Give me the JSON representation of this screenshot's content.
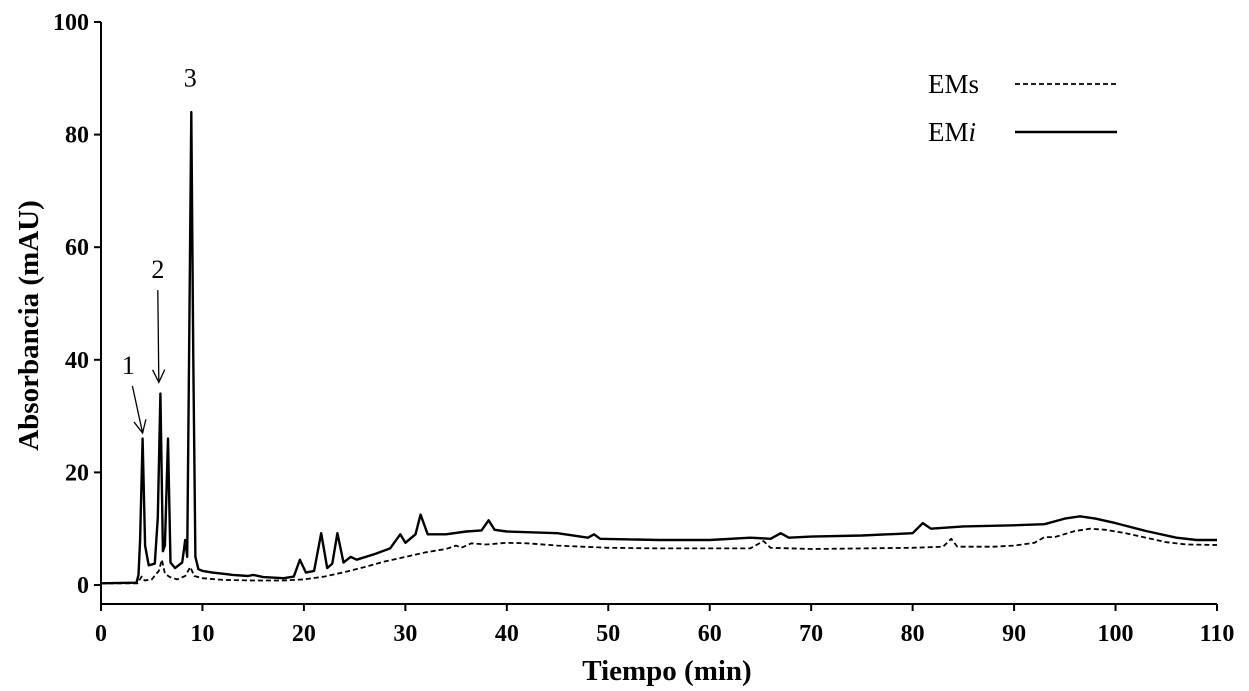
{
  "chart_data": {
    "type": "line",
    "xlabel": "Tiempo (min)",
    "ylabel": "Absorbancia (mAU)",
    "xlim": [
      0,
      110
    ],
    "ylim": [
      0,
      100
    ],
    "xticks": [
      "0",
      "10",
      "20",
      "30",
      "40",
      "50",
      "60",
      "70",
      "80",
      "90",
      "100",
      "110"
    ],
    "yticks": [
      "0",
      "20",
      "40",
      "60",
      "80",
      "100"
    ],
    "grid": false,
    "legend_position": "top-right",
    "series": [
      {
        "name": "EMs",
        "style": "dashed",
        "color": "#000000",
        "points": [
          [
            0,
            0.3
          ],
          [
            3.6,
            0.3
          ],
          [
            4.0,
            1.5
          ],
          [
            4.3,
            0.8
          ],
          [
            5.0,
            1.0
          ],
          [
            5.7,
            2.5
          ],
          [
            6.0,
            4.5
          ],
          [
            6.3,
            2.0
          ],
          [
            6.8,
            1.4
          ],
          [
            7.5,
            1.0
          ],
          [
            8.3,
            1.6
          ],
          [
            8.8,
            3.2
          ],
          [
            9.2,
            1.6
          ],
          [
            10,
            1.2
          ],
          [
            12,
            0.9
          ],
          [
            15,
            0.8
          ],
          [
            18,
            0.8
          ],
          [
            20,
            1.0
          ],
          [
            22,
            1.5
          ],
          [
            24,
            2.3
          ],
          [
            26,
            3.2
          ],
          [
            28,
            4.2
          ],
          [
            30,
            5.0
          ],
          [
            32,
            5.8
          ],
          [
            34,
            6.4
          ],
          [
            35,
            7.0
          ],
          [
            35.5,
            6.6
          ],
          [
            36.5,
            7.4
          ],
          [
            38,
            7.2
          ],
          [
            40,
            7.5
          ],
          [
            42,
            7.4
          ],
          [
            45,
            7.0
          ],
          [
            50,
            6.6
          ],
          [
            55,
            6.5
          ],
          [
            60,
            6.5
          ],
          [
            64,
            6.5
          ],
          [
            65.3,
            7.8
          ],
          [
            66,
            6.6
          ],
          [
            70,
            6.4
          ],
          [
            75,
            6.5
          ],
          [
            80,
            6.6
          ],
          [
            83,
            6.8
          ],
          [
            83.8,
            8.2
          ],
          [
            84.4,
            6.8
          ],
          [
            88,
            6.8
          ],
          [
            90,
            7.0
          ],
          [
            92,
            7.5
          ],
          [
            93,
            8.5
          ],
          [
            94,
            8.5
          ],
          [
            96,
            9.6
          ],
          [
            97.5,
            10.0
          ],
          [
            99,
            9.8
          ],
          [
            101,
            9.2
          ],
          [
            103,
            8.4
          ],
          [
            105,
            7.6
          ],
          [
            107,
            7.2
          ],
          [
            110,
            7.1
          ]
        ]
      },
      {
        "name": "EMi",
        "style": "solid",
        "color": "#000000",
        "points": [
          [
            0,
            0.3
          ],
          [
            3.5,
            0.4
          ],
          [
            3.7,
            1.8
          ],
          [
            3.85,
            8.0
          ],
          [
            4.1,
            26.0
          ],
          [
            4.35,
            7.0
          ],
          [
            4.7,
            3.5
          ],
          [
            5.3,
            3.8
          ],
          [
            5.6,
            12.0
          ],
          [
            5.85,
            34.0
          ],
          [
            6.1,
            6.0
          ],
          [
            6.3,
            7.0
          ],
          [
            6.6,
            26.0
          ],
          [
            6.85,
            4.0
          ],
          [
            7.3,
            3.0
          ],
          [
            8.0,
            4.0
          ],
          [
            8.3,
            8.0
          ],
          [
            8.5,
            5.0
          ],
          [
            8.7,
            45.0
          ],
          [
            8.9,
            84.0
          ],
          [
            9.1,
            40.0
          ],
          [
            9.3,
            5.0
          ],
          [
            9.6,
            2.8
          ],
          [
            10,
            2.5
          ],
          [
            11,
            2.2
          ],
          [
            12,
            2.0
          ],
          [
            13,
            1.8
          ],
          [
            14.5,
            1.6
          ],
          [
            15,
            1.8
          ],
          [
            16,
            1.4
          ],
          [
            18,
            1.2
          ],
          [
            19,
            1.5
          ],
          [
            19.6,
            4.5
          ],
          [
            20.2,
            2.2
          ],
          [
            21,
            2.5
          ],
          [
            21.7,
            9.2
          ],
          [
            22.3,
            3.0
          ],
          [
            22.8,
            3.8
          ],
          [
            23.3,
            9.2
          ],
          [
            23.9,
            4.0
          ],
          [
            24.6,
            5.0
          ],
          [
            25.2,
            4.5
          ],
          [
            27,
            5.5
          ],
          [
            28.5,
            6.5
          ],
          [
            29.5,
            9.0
          ],
          [
            30,
            7.5
          ],
          [
            31,
            9.0
          ],
          [
            31.5,
            12.5
          ],
          [
            32.2,
            9.0
          ],
          [
            34,
            9.0
          ],
          [
            36,
            9.5
          ],
          [
            37.5,
            9.7
          ],
          [
            38.2,
            11.5
          ],
          [
            38.8,
            9.8
          ],
          [
            40,
            9.5
          ],
          [
            45,
            9.2
          ],
          [
            48,
            8.4
          ],
          [
            48.6,
            9.0
          ],
          [
            49.2,
            8.2
          ],
          [
            55,
            8.0
          ],
          [
            60,
            8.0
          ],
          [
            64,
            8.4
          ],
          [
            66,
            8.2
          ],
          [
            67,
            9.2
          ],
          [
            67.8,
            8.4
          ],
          [
            70,
            8.6
          ],
          [
            75,
            8.8
          ],
          [
            80,
            9.2
          ],
          [
            81,
            11.0
          ],
          [
            81.8,
            10.0
          ],
          [
            85,
            10.4
          ],
          [
            90,
            10.6
          ],
          [
            93,
            10.8
          ],
          [
            95,
            11.8
          ],
          [
            96.5,
            12.2
          ],
          [
            98,
            11.8
          ],
          [
            100,
            11.0
          ],
          [
            103,
            9.6
          ],
          [
            106,
            8.4
          ],
          [
            108,
            8.0
          ],
          [
            110,
            8.0
          ]
        ]
      }
    ],
    "annotations": [
      {
        "label": "1",
        "x": 4.1,
        "y": 27.0,
        "text_x": 2.7,
        "text_y": 37.5
      },
      {
        "label": "2",
        "x": 5.7,
        "y": 36.0,
        "text_x": 5.6,
        "text_y": 54.5
      },
      {
        "label": "3",
        "text_x": 8.8,
        "text_y": 88.5
      }
    ]
  }
}
